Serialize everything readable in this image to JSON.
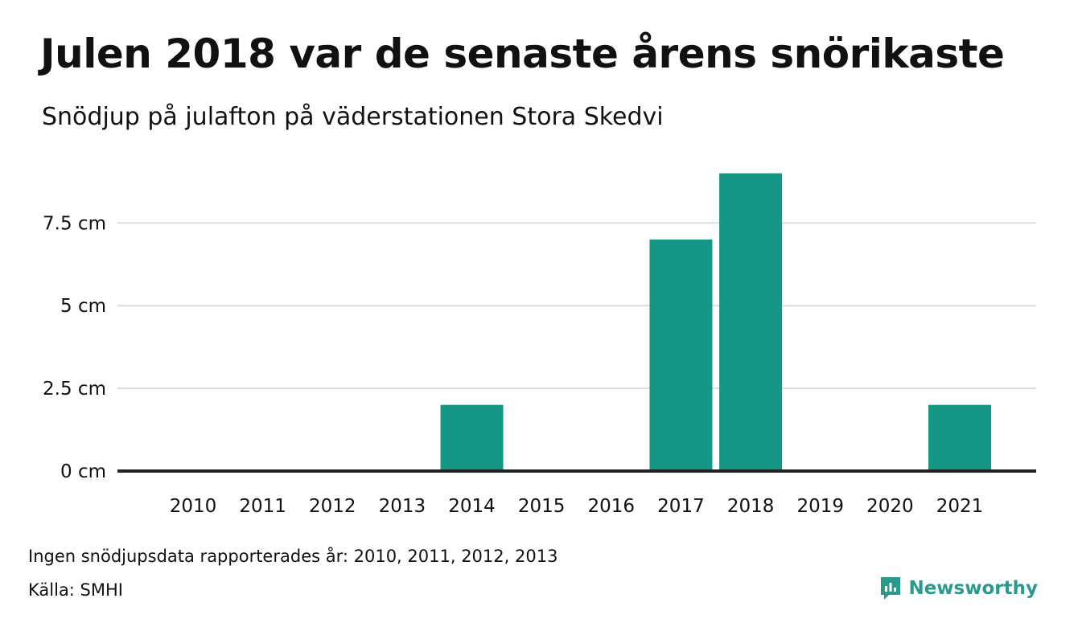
{
  "header": {
    "title": "Julen 2018 var de senaste årens snörikaste",
    "subtitle": "Snödjup på julafton på väderstationen Stora Skedvi"
  },
  "footer": {
    "note": "Ingen snödjupsdata rapporterades år: 2010, 2011, 2012, 2013",
    "source": "Källa: SMHI",
    "brand": "Newsworthy",
    "brand_icon": "newsworthy-logo-icon"
  },
  "colors": {
    "bar": "#169786",
    "grid": "#dddddd",
    "baseline": "#222222",
    "brand": "#2a9a8c"
  },
  "chart_data": {
    "type": "bar",
    "title": "Julen 2018 var de senaste årens snörikaste",
    "subtitle": "Snödjup på julafton på väderstationen Stora Skedvi",
    "categories": [
      "2010",
      "2011",
      "2012",
      "2013",
      "2014",
      "2015",
      "2016",
      "2017",
      "2018",
      "2019",
      "2020",
      "2021"
    ],
    "values": [
      null,
      null,
      null,
      null,
      2,
      0,
      0,
      7,
      9,
      0,
      0,
      2
    ],
    "y_ticks": [
      0,
      2.5,
      5,
      7.5
    ],
    "y_tick_labels": [
      "0 cm",
      "2.5 cm",
      "5 cm",
      "7.5 cm"
    ],
    "ylim": [
      0,
      9.5
    ],
    "grid": true,
    "legend": "none"
  }
}
